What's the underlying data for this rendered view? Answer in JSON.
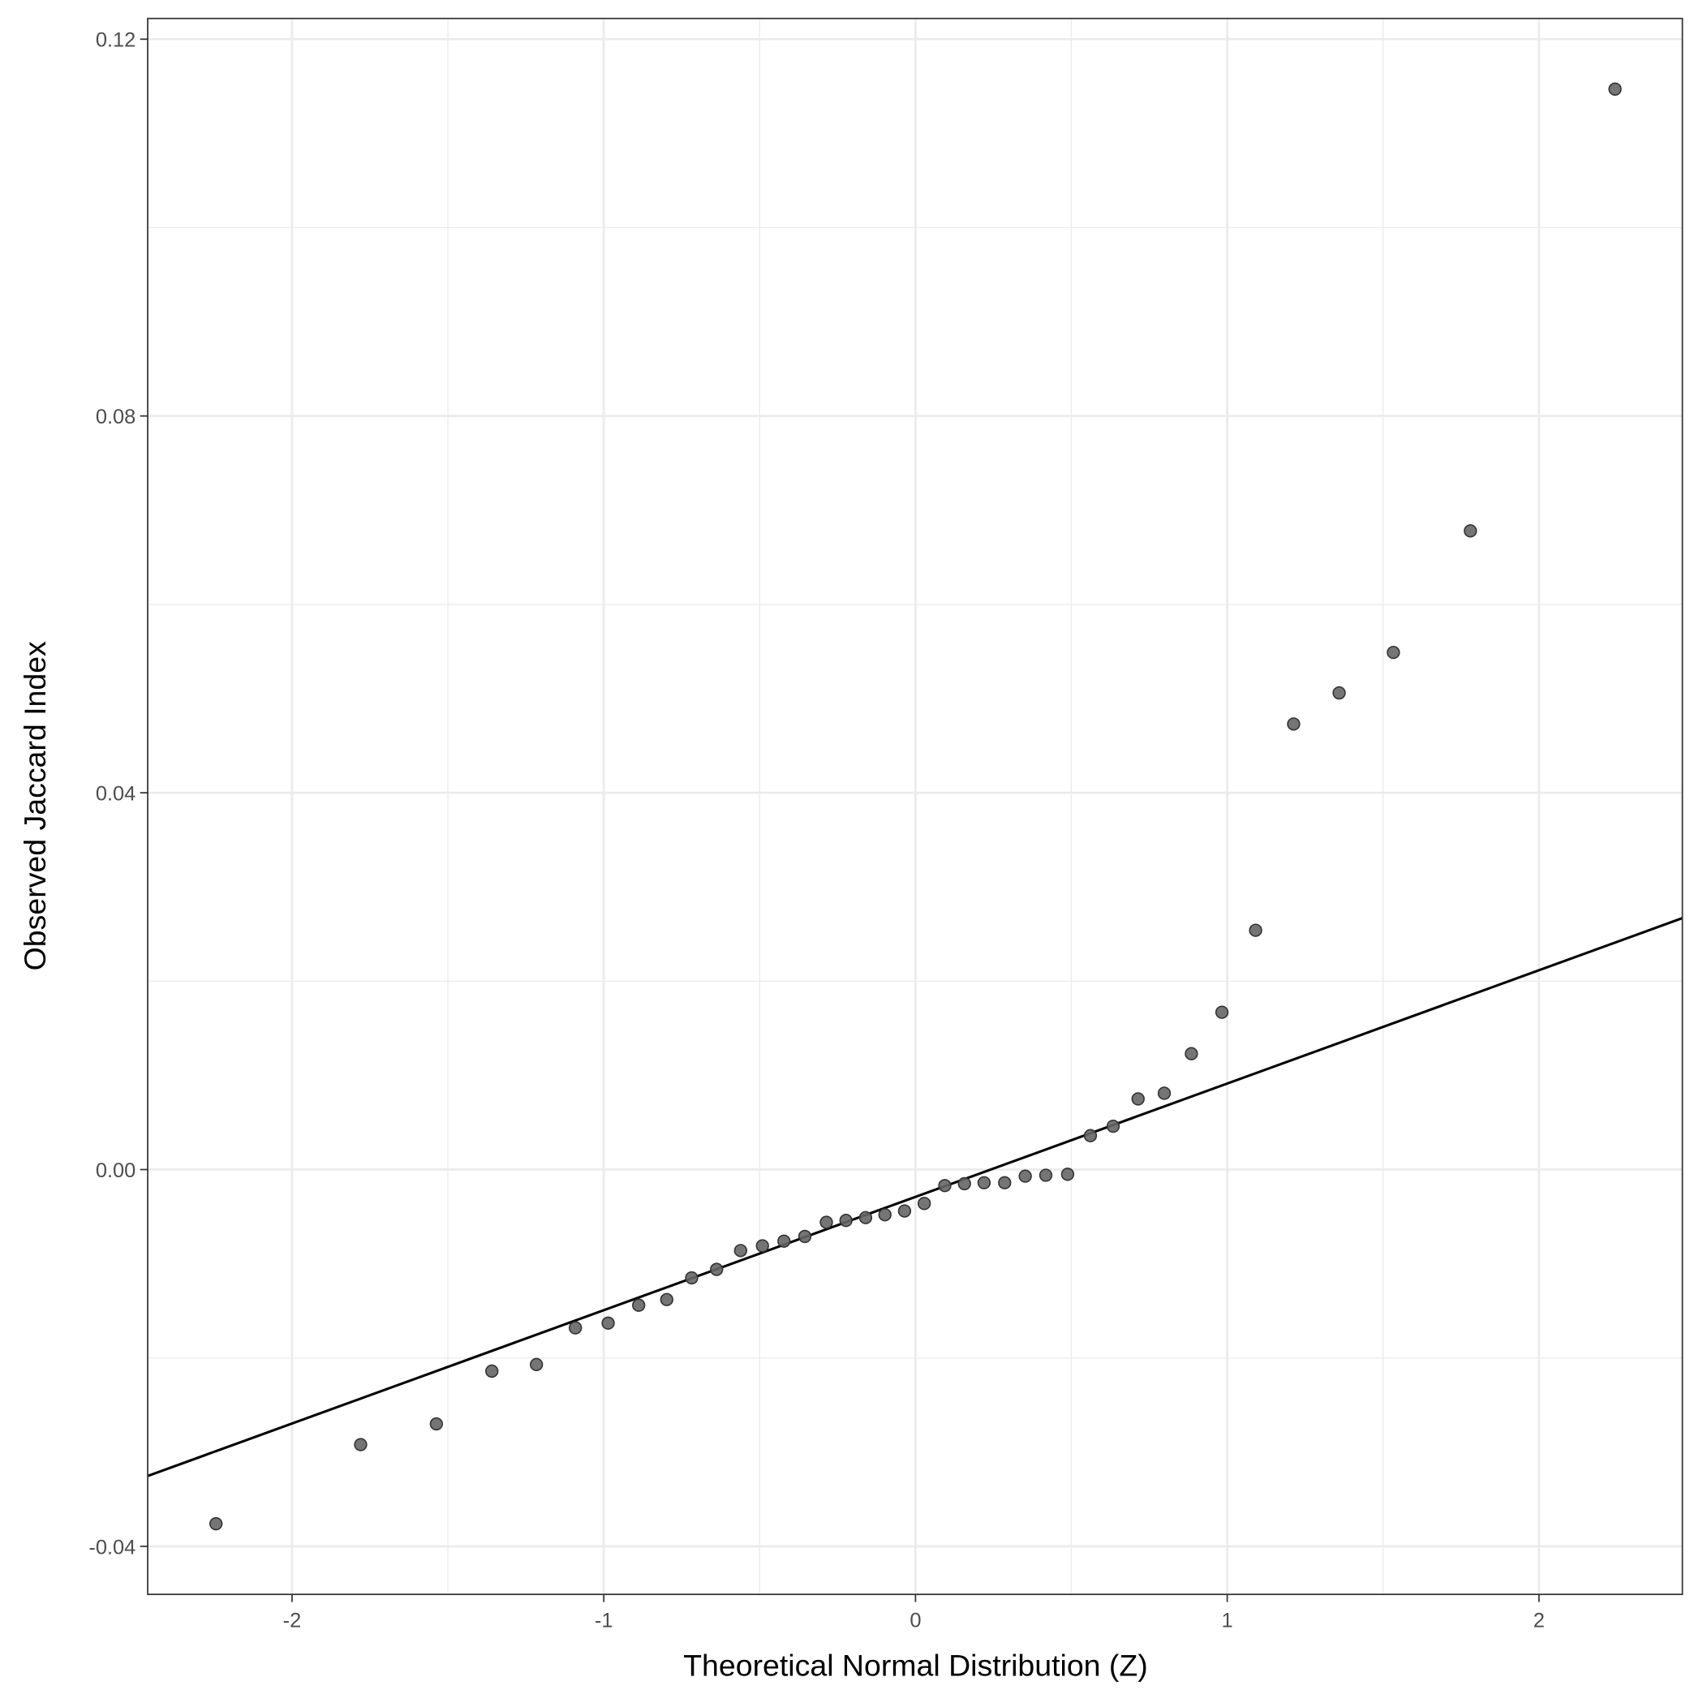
{
  "chart_data": {
    "type": "scatter",
    "title": "",
    "xlabel": "Theoretical Normal Distribution (Z)",
    "ylabel": "Observed Jaccard Index",
    "xlim": [
      -2.463,
      2.46
    ],
    "ylim": [
      -0.0451,
      0.1222
    ],
    "xticks": [
      -2,
      -1,
      0,
      1,
      2
    ],
    "xtick_labels": [
      "-2",
      "-1",
      "0",
      "1",
      "2"
    ],
    "yticks": [
      -0.04,
      0.0,
      0.04,
      0.08,
      0.12
    ],
    "ytick_labels": [
      "-0.04",
      "0.00",
      "0.04",
      "0.08",
      "0.12"
    ],
    "grid": true,
    "point_color": "#666666",
    "line_color": "#000000",
    "reference_line": {
      "slope": 0.01203,
      "intercept": -0.0029
    },
    "points": [
      [
        -2.244,
        -0.0376
      ],
      [
        -1.78,
        -0.0292
      ],
      [
        -1.537,
        -0.027
      ],
      [
        -1.359,
        -0.0214
      ],
      [
        -1.216,
        -0.0207
      ],
      [
        -1.091,
        -0.0168
      ],
      [
        -0.986,
        -0.0163
      ],
      [
        -0.888,
        -0.0144
      ],
      [
        -0.798,
        -0.0138
      ],
      [
        -0.718,
        -0.0115
      ],
      [
        -0.638,
        -0.0106
      ],
      [
        -0.561,
        -0.0086
      ],
      [
        -0.491,
        -0.0081
      ],
      [
        -0.422,
        -0.0076
      ],
      [
        -0.355,
        -0.0071
      ],
      [
        -0.286,
        -0.0056
      ],
      [
        -0.223,
        -0.0054
      ],
      [
        -0.16,
        -0.0051
      ],
      [
        -0.098,
        -0.0048
      ],
      [
        -0.035,
        -0.0044
      ],
      [
        0.028,
        -0.0036
      ],
      [
        0.094,
        -0.0017
      ],
      [
        0.157,
        -0.0015
      ],
      [
        0.22,
        -0.0014
      ],
      [
        0.286,
        -0.0014
      ],
      [
        0.352,
        -0.0007
      ],
      [
        0.418,
        -0.0006
      ],
      [
        0.488,
        -0.0005
      ],
      [
        0.561,
        0.0036
      ],
      [
        0.634,
        0.0046
      ],
      [
        0.714,
        0.0075
      ],
      [
        0.798,
        0.0081
      ],
      [
        0.885,
        0.0123
      ],
      [
        0.983,
        0.0167
      ],
      [
        1.091,
        0.0254
      ],
      [
        1.213,
        0.0473
      ],
      [
        1.359,
        0.0506
      ],
      [
        1.533,
        0.0549
      ],
      [
        1.78,
        0.0678
      ],
      [
        2.244,
        0.1147
      ]
    ]
  }
}
